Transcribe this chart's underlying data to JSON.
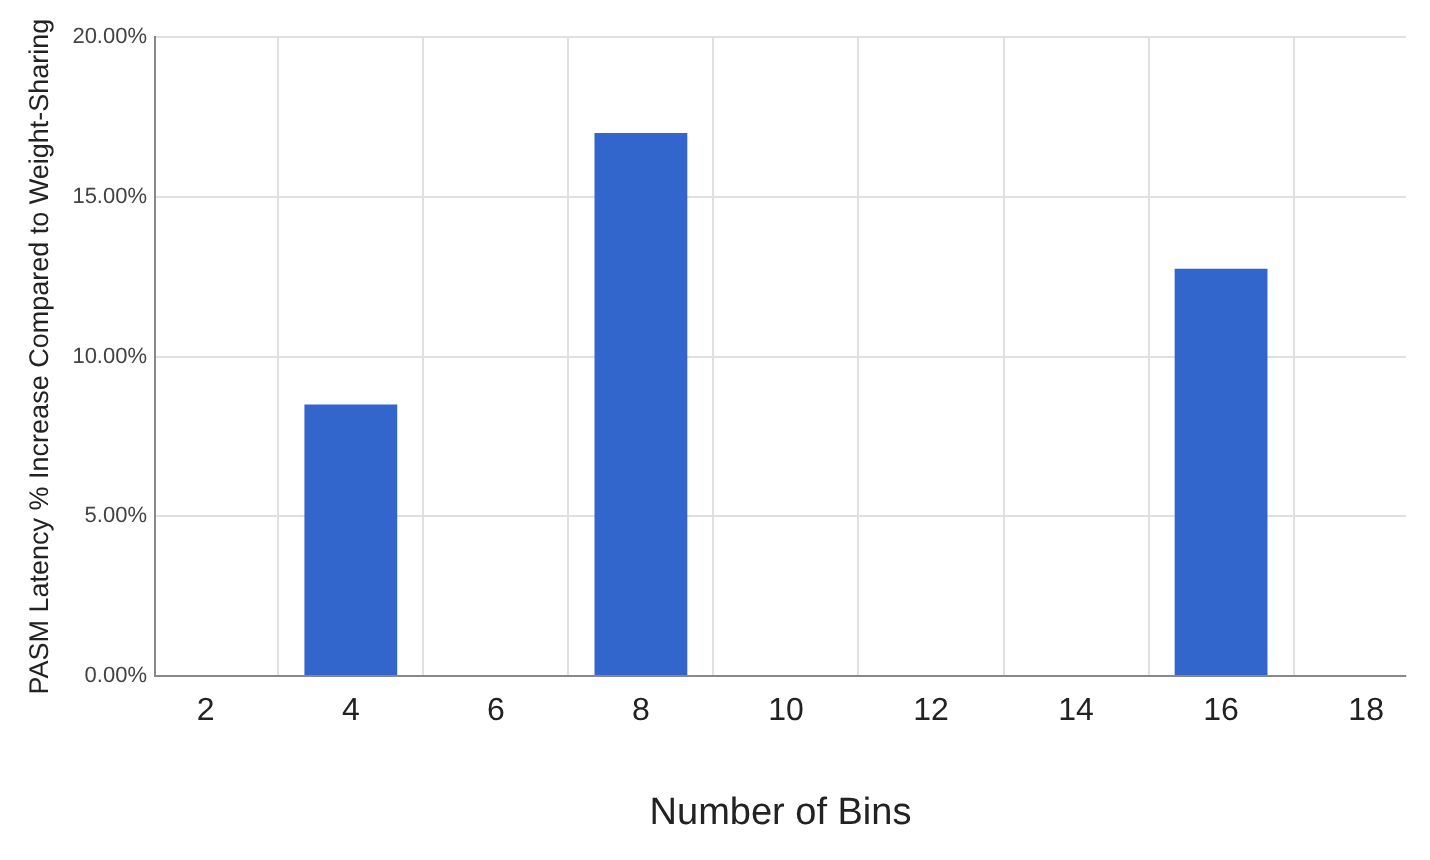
{
  "chart_data": {
    "type": "bar",
    "xlabel": "Number of Bins",
    "ylabel": "PASM Latency % Increase Compared to Weight-Sharing",
    "x": [
      4,
      8,
      16
    ],
    "values": [
      8.5,
      17,
      12.75
    ],
    "color": "#3366cc",
    "xlim": [
      1.3,
      18.55
    ],
    "xticks": [
      2,
      4,
      6,
      8,
      10,
      12,
      14,
      16,
      18
    ],
    "ylim": [
      0,
      20
    ],
    "yticks": [
      {
        "value": 0,
        "label": "0.00%"
      },
      {
        "value": 5,
        "label": "5.00%"
      },
      {
        "value": 10,
        "label": "10.00%"
      },
      {
        "value": 15,
        "label": "15.00%"
      },
      {
        "value": 20,
        "label": "20.00%"
      }
    ],
    "grid": true
  }
}
